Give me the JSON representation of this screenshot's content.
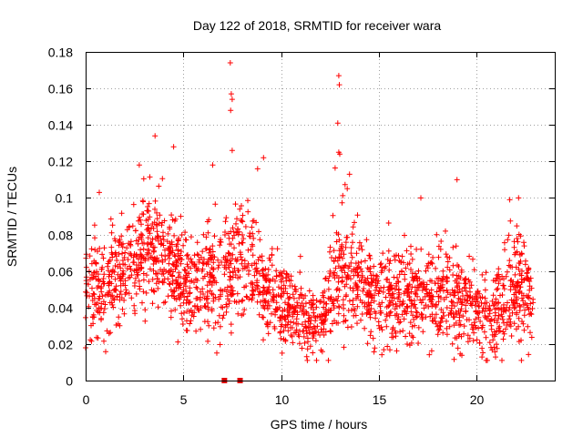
{
  "chart_data": {
    "type": "scatter",
    "title": "Day 122 of 2018, SRMTID for receiver wara",
    "xlabel": "GPS time / hours",
    "ylabel": "SRMTID / TECUs",
    "xlim": [
      0,
      24
    ],
    "ylim": [
      0,
      0.18
    ],
    "xticks": [
      0,
      5,
      10,
      15,
      20
    ],
    "xtick_labels": [
      "0",
      "5",
      "10",
      "15",
      "20"
    ],
    "yticks": [
      0,
      0.02,
      0.04,
      0.06,
      0.08,
      0.1,
      0.12,
      0.14,
      0.16,
      0.18
    ],
    "ytick_labels": [
      "0",
      "0.02",
      "0.04",
      "0.06",
      "0.08",
      "0.1",
      "0.12",
      "0.14",
      "0.16",
      "0.18"
    ],
    "grid": true,
    "marker": "+",
    "color": "#ff0000",
    "outliers": [
      {
        "x": 7.4,
        "y": 0.174
      },
      {
        "x": 7.45,
        "y": 0.157
      },
      {
        "x": 7.5,
        "y": 0.154
      },
      {
        "x": 7.42,
        "y": 0.148
      },
      {
        "x": 12.95,
        "y": 0.167
      },
      {
        "x": 12.98,
        "y": 0.162
      },
      {
        "x": 12.9,
        "y": 0.141
      },
      {
        "x": 13.0,
        "y": 0.124
      },
      {
        "x": 3.55,
        "y": 0.134
      },
      {
        "x": 4.5,
        "y": 0.128
      },
      {
        "x": 7.5,
        "y": 0.126
      },
      {
        "x": 9.1,
        "y": 0.122
      },
      {
        "x": 6.5,
        "y": 0.118
      },
      {
        "x": 12.95,
        "y": 0.125
      },
      {
        "x": 19.0,
        "y": 0.11
      },
      {
        "x": 22.15,
        "y": 0.1
      },
      {
        "x": 21.7,
        "y": 0.099
      },
      {
        "x": 17.15,
        "y": 0.1
      },
      {
        "x": 0.7,
        "y": 0.103
      },
      {
        "x": 8.8,
        "y": 0.116
      },
      {
        "x": 13.5,
        "y": 0.113
      }
    ],
    "baseline_markers": [
      {
        "x": 7.1,
        "y": 0
      },
      {
        "x": 7.9,
        "y": 0
      }
    ],
    "hourly_profile": {
      "hours": [
        0,
        1,
        2,
        3,
        4,
        5,
        6,
        7,
        8,
        9,
        10,
        11,
        12,
        13,
        14,
        15,
        16,
        17,
        18,
        19,
        20,
        21,
        22,
        23
      ],
      "mean": [
        0.048,
        0.055,
        0.062,
        0.075,
        0.07,
        0.056,
        0.053,
        0.058,
        0.066,
        0.05,
        0.042,
        0.036,
        0.03,
        0.062,
        0.052,
        0.044,
        0.048,
        0.044,
        0.048,
        0.042,
        0.036,
        0.038,
        0.05,
        0.046
      ],
      "spread": [
        0.012,
        0.013,
        0.014,
        0.016,
        0.015,
        0.013,
        0.013,
        0.016,
        0.017,
        0.013,
        0.011,
        0.01,
        0.009,
        0.017,
        0.013,
        0.013,
        0.013,
        0.012,
        0.013,
        0.013,
        0.011,
        0.012,
        0.016,
        0.012
      ]
    },
    "samples_per_hour": 95
  }
}
